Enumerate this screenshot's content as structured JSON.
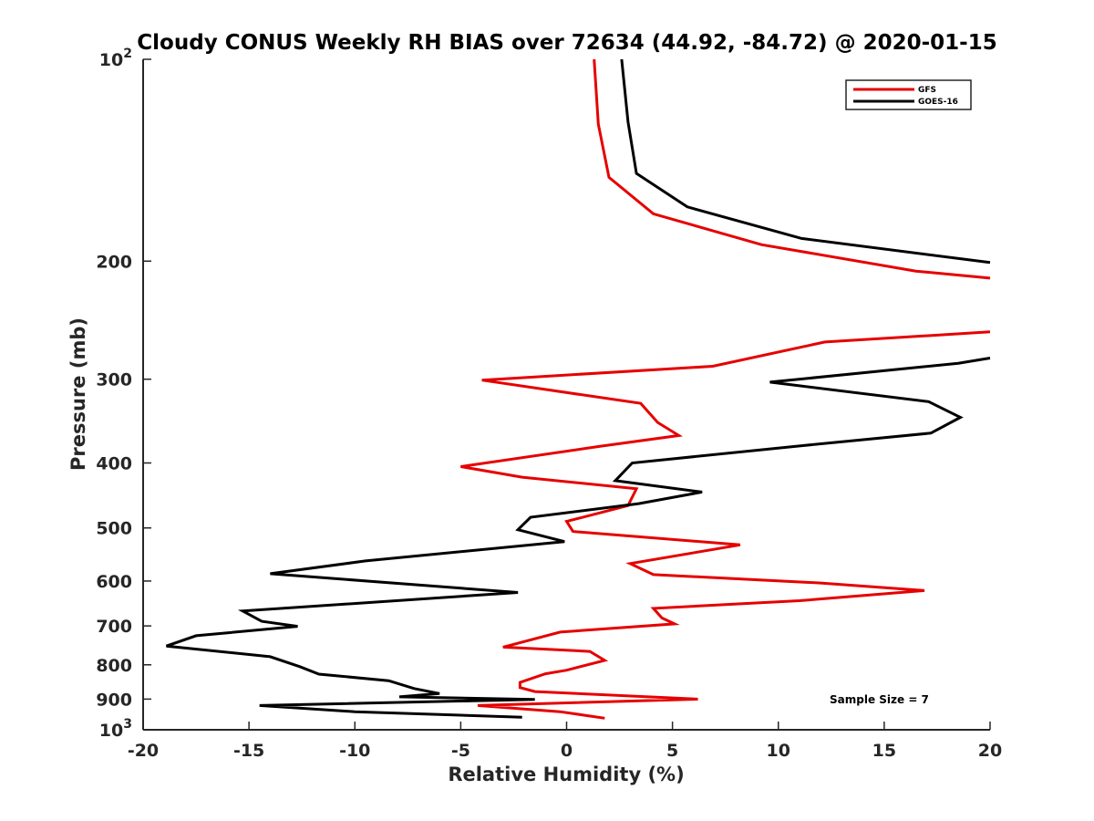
{
  "chart_data": {
    "type": "line",
    "title": "Cloudy CONUS Weekly RH BIAS over 72634 (44.92, -84.72) @ 2020-01-15",
    "xlabel": "Relative Humidity (%)",
    "ylabel": "Pressure (mb)",
    "xlim": [
      -20,
      20
    ],
    "ylim": [
      100,
      1000
    ],
    "y_scale": "log",
    "y_reversed": true,
    "grid": false,
    "legend_position": "top-right",
    "x_ticks": [
      "-20",
      "-15",
      "-10",
      "-5",
      "0",
      "5",
      "10",
      "15",
      "20"
    ],
    "y_ticks": [
      {
        "value": 100,
        "base": "10",
        "exp": "2"
      },
      {
        "value": 200,
        "label": "200"
      },
      {
        "value": 300,
        "label": "300"
      },
      {
        "value": 400,
        "label": "400"
      },
      {
        "value": 500,
        "label": "500"
      },
      {
        "value": 600,
        "label": "600"
      },
      {
        "value": 700,
        "label": "700"
      },
      {
        "value": 800,
        "label": "800"
      },
      {
        "value": 900,
        "label": "900"
      },
      {
        "value": 1000,
        "base": "10",
        "exp": "3"
      }
    ],
    "annotation": "Sample Size = 7",
    "series": [
      {
        "name": "GFS",
        "color": "#e60000",
        "segments": [
          [
            {
              "x": 1.3,
              "y": 100
            },
            {
              "x": 1.5,
              "y": 125
            },
            {
              "x": 2.0,
              "y": 150
            },
            {
              "x": 4.1,
              "y": 170
            },
            {
              "x": 9.2,
              "y": 189
            },
            {
              "x": 16.5,
              "y": 207
            },
            {
              "x": 20.0,
              "y": 212
            }
          ],
          [
            {
              "x": 20.0,
              "y": 255
            },
            {
              "x": 12.2,
              "y": 264
            },
            {
              "x": 6.9,
              "y": 287
            },
            {
              "x": -4.0,
              "y": 301
            },
            {
              "x": 3.5,
              "y": 326
            },
            {
              "x": 4.3,
              "y": 348
            },
            {
              "x": 5.3,
              "y": 364
            },
            {
              "x": 1.5,
              "y": 378
            },
            {
              "x": -5.0,
              "y": 405
            },
            {
              "x": -2.1,
              "y": 420
            },
            {
              "x": 3.3,
              "y": 437
            },
            {
              "x": 2.9,
              "y": 463
            },
            {
              "x": 0.0,
              "y": 489
            },
            {
              "x": 0.3,
              "y": 506
            },
            {
              "x": 8.2,
              "y": 530
            },
            {
              "x": 3.0,
              "y": 565
            },
            {
              "x": 4.1,
              "y": 587
            },
            {
              "x": 12.0,
              "y": 604
            },
            {
              "x": 16.9,
              "y": 620
            },
            {
              "x": 11.0,
              "y": 642
            },
            {
              "x": 4.1,
              "y": 659
            },
            {
              "x": 4.5,
              "y": 681
            },
            {
              "x": 5.1,
              "y": 695
            },
            {
              "x": -0.3,
              "y": 715
            },
            {
              "x": -3.0,
              "y": 753
            },
            {
              "x": 1.1,
              "y": 764
            },
            {
              "x": 1.8,
              "y": 788
            },
            {
              "x": 0.0,
              "y": 815
            },
            {
              "x": -1.0,
              "y": 825
            },
            {
              "x": -2.2,
              "y": 850
            },
            {
              "x": -2.2,
              "y": 865
            },
            {
              "x": -1.5,
              "y": 877
            },
            {
              "x": 6.2,
              "y": 900
            },
            {
              "x": -4.2,
              "y": 920
            },
            {
              "x": -0.3,
              "y": 940
            },
            {
              "x": 1.8,
              "y": 961
            }
          ]
        ]
      },
      {
        "name": "GOES-16",
        "color": "#000000",
        "segments": [
          [
            {
              "x": 2.6,
              "y": 100
            },
            {
              "x": 2.9,
              "y": 124
            },
            {
              "x": 3.3,
              "y": 148
            },
            {
              "x": 5.7,
              "y": 166
            },
            {
              "x": 11.1,
              "y": 185
            },
            {
              "x": 20.0,
              "y": 201
            }
          ],
          [
            {
              "x": 20.0,
              "y": 279
            },
            {
              "x": 18.5,
              "y": 284
            },
            {
              "x": 9.6,
              "y": 303
            },
            {
              "x": 17.1,
              "y": 324
            },
            {
              "x": 18.6,
              "y": 342
            },
            {
              "x": 17.2,
              "y": 361
            },
            {
              "x": 11.1,
              "y": 377
            },
            {
              "x": 3.1,
              "y": 400
            },
            {
              "x": 2.3,
              "y": 425
            },
            {
              "x": 6.4,
              "y": 442
            },
            {
              "x": 3.4,
              "y": 460
            },
            {
              "x": -1.7,
              "y": 482
            },
            {
              "x": -2.3,
              "y": 503
            },
            {
              "x": -0.1,
              "y": 524
            },
            {
              "x": -9.5,
              "y": 560
            },
            {
              "x": -14.0,
              "y": 585
            },
            {
              "x": -2.3,
              "y": 624
            },
            {
              "x": -15.3,
              "y": 665
            },
            {
              "x": -14.4,
              "y": 689
            },
            {
              "x": -12.7,
              "y": 701
            },
            {
              "x": -17.5,
              "y": 724
            },
            {
              "x": -18.9,
              "y": 750
            },
            {
              "x": -14.0,
              "y": 778
            },
            {
              "x": -12.6,
              "y": 805
            },
            {
              "x": -11.7,
              "y": 826
            },
            {
              "x": -8.4,
              "y": 845
            },
            {
              "x": -7.2,
              "y": 868
            },
            {
              "x": -6.0,
              "y": 883
            },
            {
              "x": -7.9,
              "y": 893
            },
            {
              "x": -1.5,
              "y": 901
            },
            {
              "x": -14.5,
              "y": 920
            },
            {
              "x": -10.0,
              "y": 940
            },
            {
              "x": -2.1,
              "y": 958
            }
          ]
        ]
      }
    ]
  }
}
